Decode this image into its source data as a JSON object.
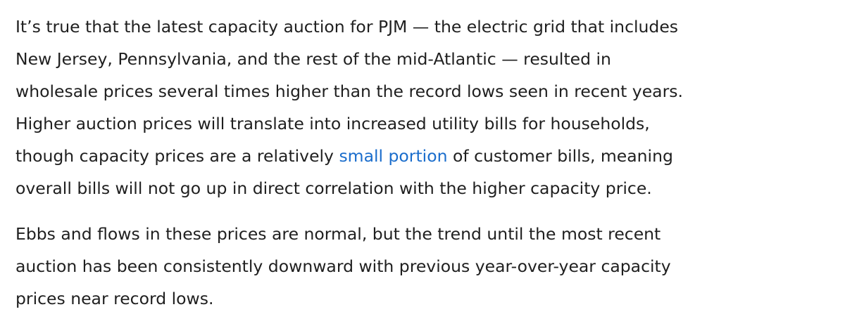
{
  "paragraphs": [
    {
      "lines": [
        "It’s true that the latest capacity auction for PJM — the electric grid that includes",
        "New Jersey, Pennsylvania, and the rest of the mid-Atlantic — resulted in",
        "wholesale prices several times higher than the record lows seen in recent years.",
        "Higher auction prices will translate into increased utility bills for households,",
        {
          "before": "though capacity prices are a relatively ",
          "link": "small portion",
          "after": " of customer bills, meaning"
        },
        "overall bills will not go up in direct correlation with the higher capacity price."
      ]
    },
    {
      "lines": [
        "Ebbs and flows in these prices are normal, but the trend until the most recent",
        "auction has been consistently downward with previous year-over-year capacity",
        "prices near record lows."
      ]
    }
  ]
}
